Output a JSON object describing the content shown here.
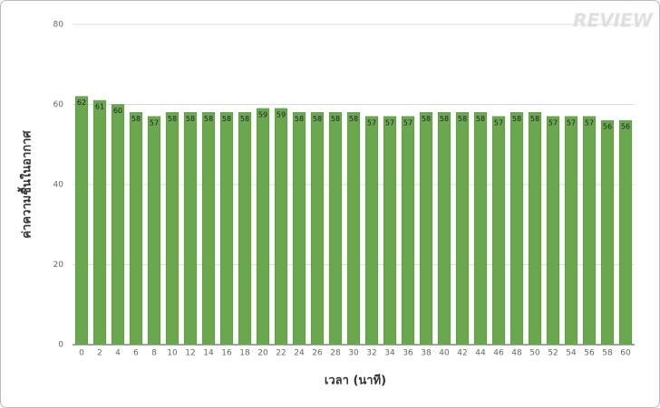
{
  "watermark": "REVIEW",
  "chart_data": {
    "type": "bar",
    "x_label": "เวลา (นาที)",
    "y_label": "ค่าความชื้นในอากาศ",
    "categories": [
      0,
      2,
      4,
      6,
      8,
      10,
      12,
      14,
      16,
      18,
      20,
      22,
      24,
      26,
      28,
      30,
      32,
      34,
      36,
      38,
      40,
      42,
      44,
      46,
      48,
      50,
      52,
      54,
      56,
      58,
      60
    ],
    "values": [
      62,
      61,
      60,
      58,
      57,
      58,
      58,
      58,
      58,
      58,
      59,
      59,
      58,
      58,
      58,
      58,
      57,
      57,
      57,
      58,
      58,
      58,
      58,
      57,
      58,
      58,
      57,
      57,
      57,
      56,
      56
    ],
    "color": "#6aa84f",
    "ylim": [
      0,
      80
    ],
    "yticks": [
      0,
      20,
      40,
      60,
      80
    ],
    "grid": true
  }
}
